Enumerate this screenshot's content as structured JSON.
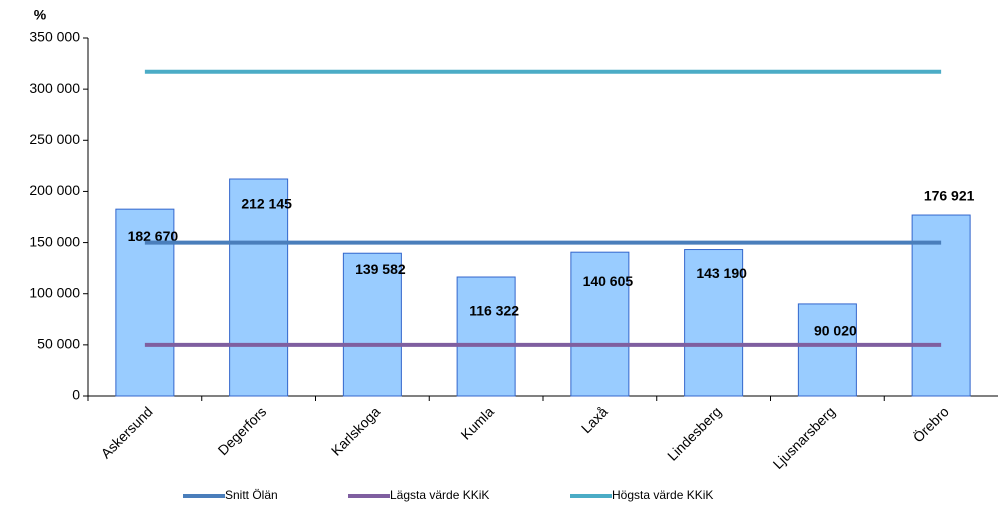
{
  "chart_data": {
    "type": "bar",
    "y_label": "%",
    "categories": [
      "Askersund",
      "Degerfors",
      "Karlskoga",
      "Kumla",
      "Laxå",
      "Lindesberg",
      "Ljusnarsberg",
      "Örebro"
    ],
    "series": [
      {
        "type": "bar",
        "color": "#99ccff",
        "values": [
          182670,
          212145,
          139582,
          116322,
          140605,
          143190,
          90020,
          176921
        ],
        "value_labels": [
          "182 670",
          "212 145",
          "139 582",
          "116 322",
          "140 605",
          "143 190",
          "90 020",
          "176 921"
        ]
      },
      {
        "type": "line",
        "name": "Snitt Ölän",
        "color": "#4a7ebb",
        "values": [
          150000,
          150000,
          150000,
          150000,
          150000,
          150000,
          150000,
          150000
        ]
      },
      {
        "type": "line",
        "name": "Lägsta värde KKiK",
        "color": "#7f5fa0",
        "values": [
          50000,
          50000,
          50000,
          50000,
          50000,
          50000,
          50000,
          50000
        ]
      },
      {
        "type": "line",
        "name": "Högsta värde KKiK",
        "color": "#4bacc6",
        "values": [
          317000,
          317000,
          317000,
          317000,
          317000,
          317000,
          317000,
          317000
        ]
      }
    ],
    "ylim": [
      0,
      350000
    ],
    "yticks": [
      {
        "value": 0,
        "label": "0"
      },
      {
        "value": 50000,
        "label": "50 000"
      },
      {
        "value": 100000,
        "label": "100 000"
      },
      {
        "value": 150000,
        "label": "150 000"
      },
      {
        "value": 200000,
        "label": "200 000"
      },
      {
        "value": 250000,
        "label": "250 000"
      },
      {
        "value": 300000,
        "label": "300 000"
      },
      {
        "value": 350000,
        "label": "350 000"
      }
    ],
    "legend": "bottom"
  }
}
